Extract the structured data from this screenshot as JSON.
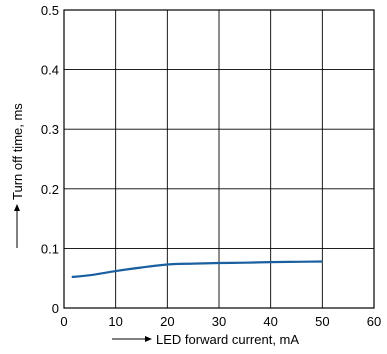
{
  "chart_data": {
    "type": "line",
    "xlabel": "LED forward current, mA",
    "ylabel": "Turn off time, ms",
    "xlim": [
      0,
      60
    ],
    "ylim": [
      0,
      0.5
    ],
    "x_ticks": [
      0,
      10,
      20,
      30,
      40,
      50,
      60
    ],
    "y_ticks": [
      0,
      0.1,
      0.2,
      0.3,
      0.4,
      0.5
    ],
    "x_tick_labels": [
      "0",
      "10",
      "20",
      "30",
      "40",
      "50",
      "60"
    ],
    "y_tick_labels": [
      "0",
      "0.1",
      "0.2",
      "0.3",
      "0.4",
      "0.5"
    ],
    "grid": true,
    "series": [
      {
        "color": "#1a5fa0",
        "points": [
          {
            "x": 1.5,
            "y": 0.052
          },
          {
            "x": 5,
            "y": 0.055
          },
          {
            "x": 10,
            "y": 0.062
          },
          {
            "x": 15,
            "y": 0.068
          },
          {
            "x": 20,
            "y": 0.073
          },
          {
            "x": 25,
            "y": 0.0745
          },
          {
            "x": 30,
            "y": 0.0755
          },
          {
            "x": 35,
            "y": 0.076
          },
          {
            "x": 40,
            "y": 0.077
          },
          {
            "x": 45,
            "y": 0.0775
          },
          {
            "x": 50,
            "y": 0.078
          }
        ]
      }
    ]
  }
}
